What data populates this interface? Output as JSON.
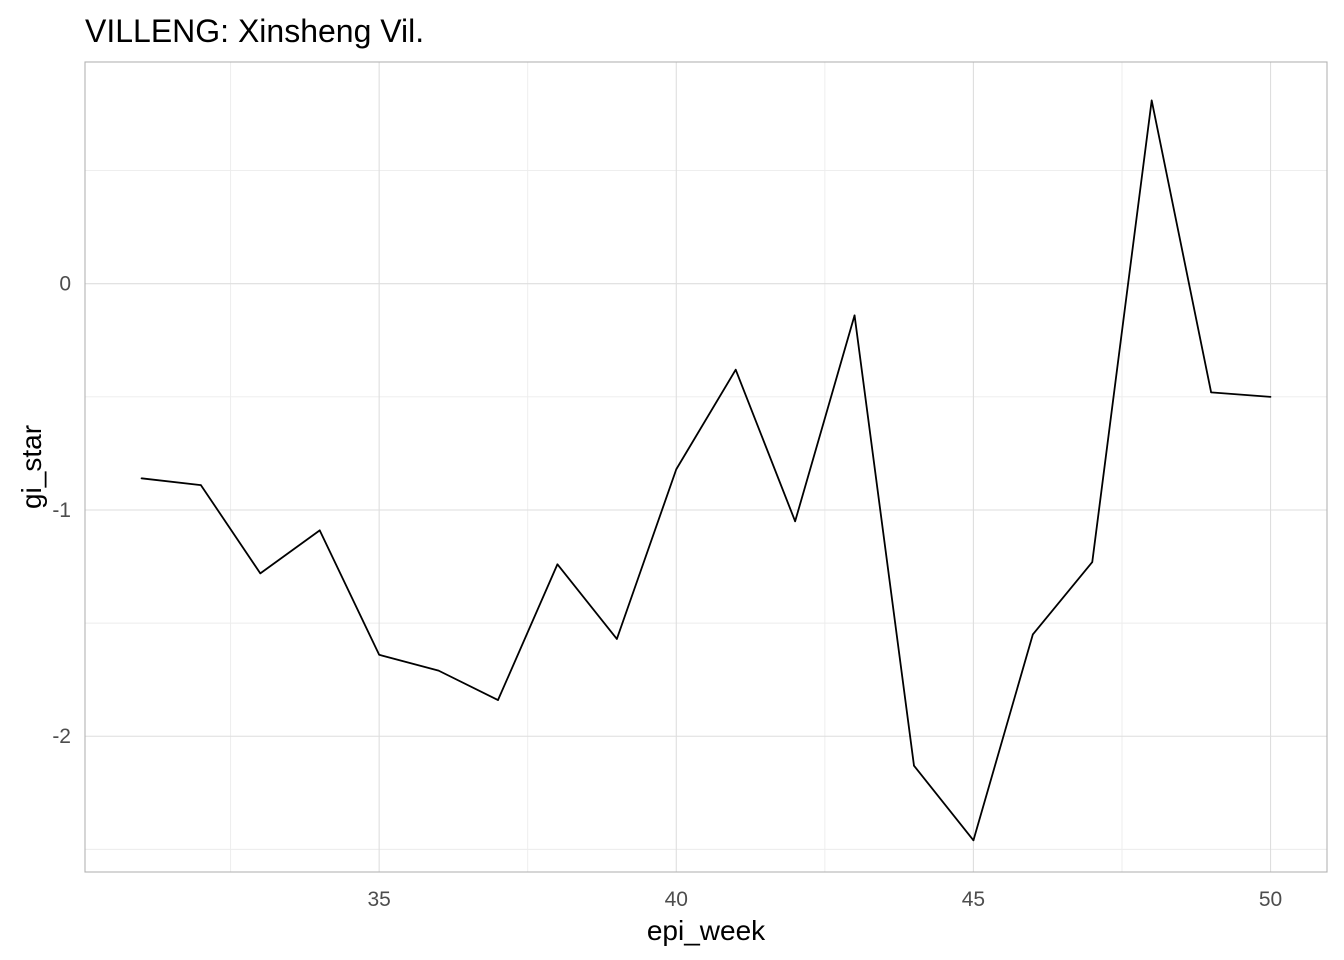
{
  "chart_data": {
    "type": "line",
    "title": "VILLENG: Xinsheng Vil.",
    "xlabel": "epi_week",
    "ylabel": "gi_star",
    "xlim": [
      30.05,
      50.95
    ],
    "ylim": [
      -2.6,
      0.98
    ],
    "x_ticks": [
      35,
      40,
      45,
      50
    ],
    "x_tick_labels": [
      "35",
      "40",
      "45",
      "50"
    ],
    "x_minor_ticks": [
      32.5,
      37.5,
      42.5,
      47.5
    ],
    "y_ticks": [
      0,
      -1,
      -2
    ],
    "y_tick_labels": [
      "0",
      "-1",
      "-2"
    ],
    "y_minor_ticks": [
      0.5,
      -0.5,
      -1.5,
      -2.5
    ],
    "grid": true,
    "legend": "none",
    "series": [
      {
        "color": "#000000",
        "x": [
          31,
          32,
          33,
          34,
          35,
          36,
          37,
          38,
          39,
          40,
          41,
          42,
          43,
          44,
          45,
          46,
          47,
          48,
          49,
          50
        ],
        "values": [
          -0.86,
          -0.89,
          -1.28,
          -1.09,
          -1.64,
          -1.71,
          -1.84,
          -1.24,
          -1.57,
          -0.82,
          -0.38,
          -1.05,
          -0.14,
          -2.13,
          -2.46,
          -1.55,
          -1.23,
          0.81,
          -0.48,
          -0.5
        ]
      }
    ]
  }
}
